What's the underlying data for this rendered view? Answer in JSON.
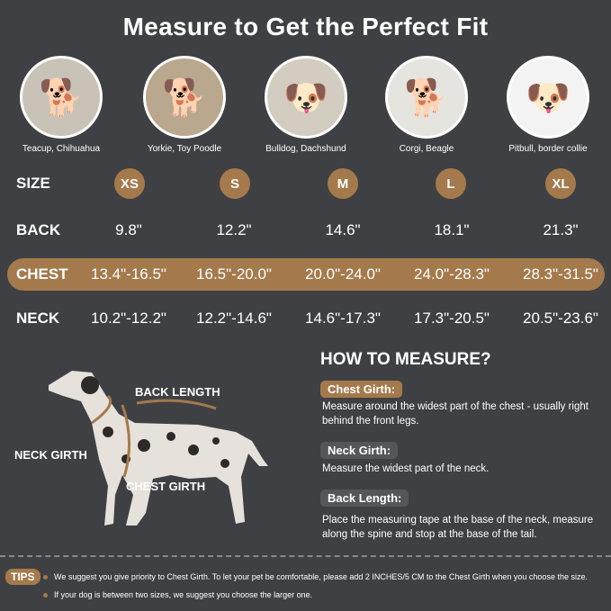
{
  "title": "Measure to Get the Perfect Fit",
  "colors": {
    "background": "#3f4043",
    "accent": "#a47a4c"
  },
  "breeds": [
    "Teacup, Chihuahua",
    "Yorkie, Toy Poodle",
    "Bulldog, Dachshund",
    "Corgi, Beagle",
    "Pitbull, border collie"
  ],
  "table": {
    "size_label": "SIZE",
    "sizes": [
      "XS",
      "S",
      "M",
      "L",
      "XL"
    ],
    "back_label": "BACK",
    "back": [
      "9.8\"",
      "12.2\"",
      "14.6\"",
      "18.1\"",
      "21.3\""
    ],
    "chest_label": "CHEST",
    "chest": [
      "13.4\"-16.5\"",
      "16.5\"-20.0\"",
      "20.0\"-24.0\"",
      "24.0\"-28.3\"",
      "28.3\"-31.5\""
    ],
    "neck_label": "NECK",
    "neck": [
      "10.2\"-12.2\"",
      "12.2\"-14.6\"",
      "14.6\"-17.3\"",
      "17.3\"-20.5\"",
      "20.5\"-23.6\""
    ]
  },
  "diagram": {
    "back_length": "BACK LENGTH",
    "neck_girth": "NECK GIRTH",
    "chest_girth": "CHEST GIRTH"
  },
  "how_to": {
    "heading": "HOW TO MEASURE?",
    "items": [
      {
        "label": "Chest Girth:",
        "text": "Measure around the widest part of the chest - usually right behind the front legs."
      },
      {
        "label": "Neck Girth:",
        "text": "Measure the widest part of the neck."
      },
      {
        "label": "Back Length:",
        "text": "Place the measuring tape at the base of the neck, measure along the spine and stop at the base of the tail."
      }
    ]
  },
  "tips": {
    "label": "TIPS",
    "items": [
      "We suggest you give priority to Chest Girth. To let your pet be comfortable, please add 2 INCHES/5 CM to the Chest Girth when you choose the size.",
      "If your dog is between two sizes, we suggest you choose the larger one."
    ]
  }
}
